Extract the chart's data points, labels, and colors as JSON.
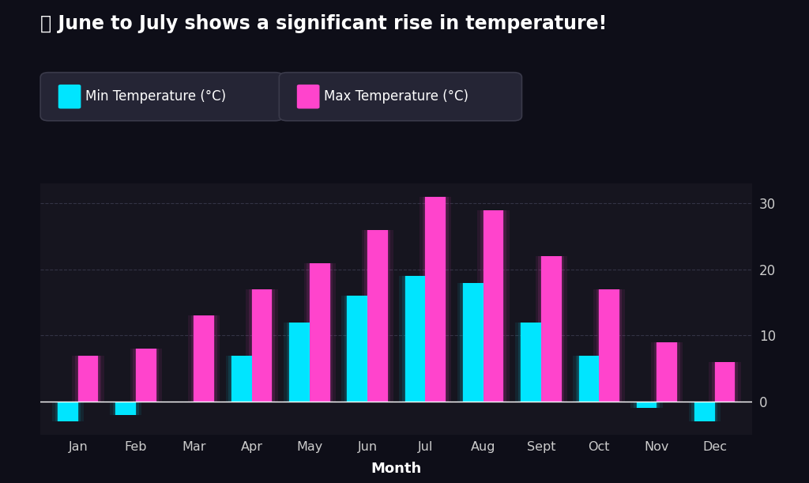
{
  "months": [
    "Jan",
    "Feb",
    "Mar",
    "Apr",
    "May",
    "Jun",
    "Jul",
    "Aug",
    "Sept",
    "Oct",
    "Nov",
    "Dec"
  ],
  "min_temp": [
    -3,
    -2,
    0,
    7,
    12,
    16,
    19,
    18,
    12,
    7,
    -1,
    -3
  ],
  "max_temp": [
    7,
    8,
    13,
    17,
    21,
    26,
    31,
    29,
    22,
    17,
    9,
    6
  ],
  "min_color": "#00e5ff",
  "max_color": "#ff44cc",
  "min_label": "Min Temperature (°C)",
  "max_label": "Max Temperature (°C)",
  "title": "🌞 June to July shows a significant rise in temperature!",
  "xlabel": "Month",
  "ylim_min": -5,
  "ylim_max": 33,
  "yticks": [
    0,
    10,
    20,
    30
  ],
  "background_color": "#0e0e18",
  "card_color": "#16151f",
  "bar_width": 0.35,
  "grid_color": "#333344",
  "text_color": "#ffffff",
  "tick_color": "#cccccc",
  "legend_box_color": "#252535",
  "legend_edge_color": "#3a3a4a"
}
